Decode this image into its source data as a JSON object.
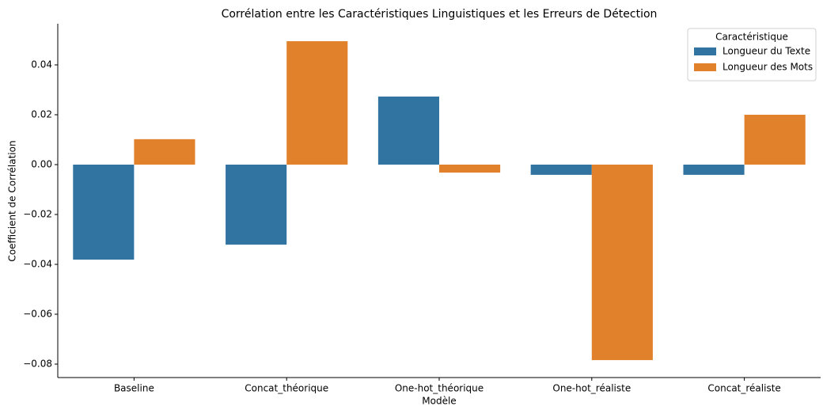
{
  "chart_data": {
    "type": "bar",
    "title": "Corrélation entre les Caractéristiques Linguistiques et les Erreurs de Détection",
    "xlabel": "Modèle",
    "ylabel": "Coefficient de Corrélation",
    "categories": [
      "Baseline",
      "Concat_théorique",
      "One-hot_théorique",
      "One-hot_réaliste",
      "Concat_réaliste"
    ],
    "series": [
      {
        "name": "Longueur du Texte",
        "color": "#3274a1",
        "values": [
          -0.0381,
          -0.0321,
          0.0273,
          -0.0041,
          -0.0041
        ]
      },
      {
        "name": "Longueur des Mots",
        "color": "#e1812c",
        "values": [
          0.0102,
          0.0495,
          -0.0032,
          -0.0784,
          0.02
        ]
      }
    ],
    "legend_title": "Caractéristique",
    "legend": "upper right",
    "ylim": [
      -0.0854,
      0.0565
    ],
    "yticks": [
      {
        "value": -0.08,
        "label": "−0.08"
      },
      {
        "value": -0.06,
        "label": "−0.06"
      },
      {
        "value": -0.04,
        "label": "−0.04"
      },
      {
        "value": -0.02,
        "label": "−0.02"
      },
      {
        "value": 0,
        "label": "0.00"
      },
      0.02,
      0.04
    ]
  }
}
